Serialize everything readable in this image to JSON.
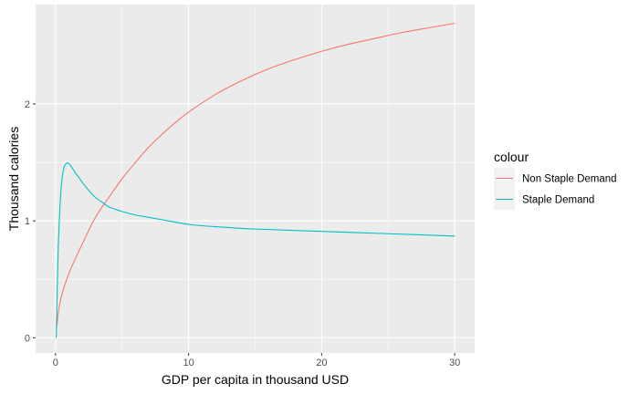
{
  "chart_data": {
    "type": "line",
    "title": "",
    "xlabel": "GDP per capita in thousand USD",
    "ylabel": "Thousand calories",
    "xlim": [
      -1.5,
      31.5
    ],
    "ylim": [
      -0.13,
      2.85
    ],
    "x_ticks": [
      0,
      10,
      20,
      30
    ],
    "y_ticks": [
      0,
      1,
      2
    ],
    "grid": true,
    "legend": {
      "title": "colour",
      "placement": "right"
    },
    "series": [
      {
        "name": "Non Staple Demand",
        "color": "#F8766D",
        "x": [
          0.1,
          0.25,
          0.5,
          0.75,
          1,
          1.5,
          2,
          2.5,
          3,
          3.5,
          4,
          5,
          6,
          7,
          8,
          9,
          10,
          12,
          14,
          16,
          18,
          20,
          22,
          24,
          26,
          28,
          30
        ],
        "y": [
          0.1,
          0.25,
          0.38,
          0.47,
          0.55,
          0.68,
          0.8,
          0.92,
          1.03,
          1.12,
          1.2,
          1.36,
          1.5,
          1.63,
          1.74,
          1.84,
          1.93,
          2.08,
          2.2,
          2.3,
          2.38,
          2.45,
          2.51,
          2.56,
          2.61,
          2.65,
          2.69
        ]
      },
      {
        "name": "Staple Demand",
        "color": "#00BFC4",
        "x": [
          0.05,
          0.2,
          0.4,
          0.6,
          0.8,
          1,
          1.2,
          1.5,
          2,
          2.5,
          3,
          3.5,
          4,
          5,
          6,
          7,
          8,
          10,
          12,
          15,
          20,
          25,
          30
        ],
        "y": [
          0.0,
          0.75,
          1.25,
          1.44,
          1.49,
          1.49,
          1.46,
          1.41,
          1.33,
          1.26,
          1.2,
          1.16,
          1.12,
          1.08,
          1.05,
          1.03,
          1.01,
          0.97,
          0.95,
          0.93,
          0.91,
          0.89,
          0.87
        ]
      }
    ]
  }
}
